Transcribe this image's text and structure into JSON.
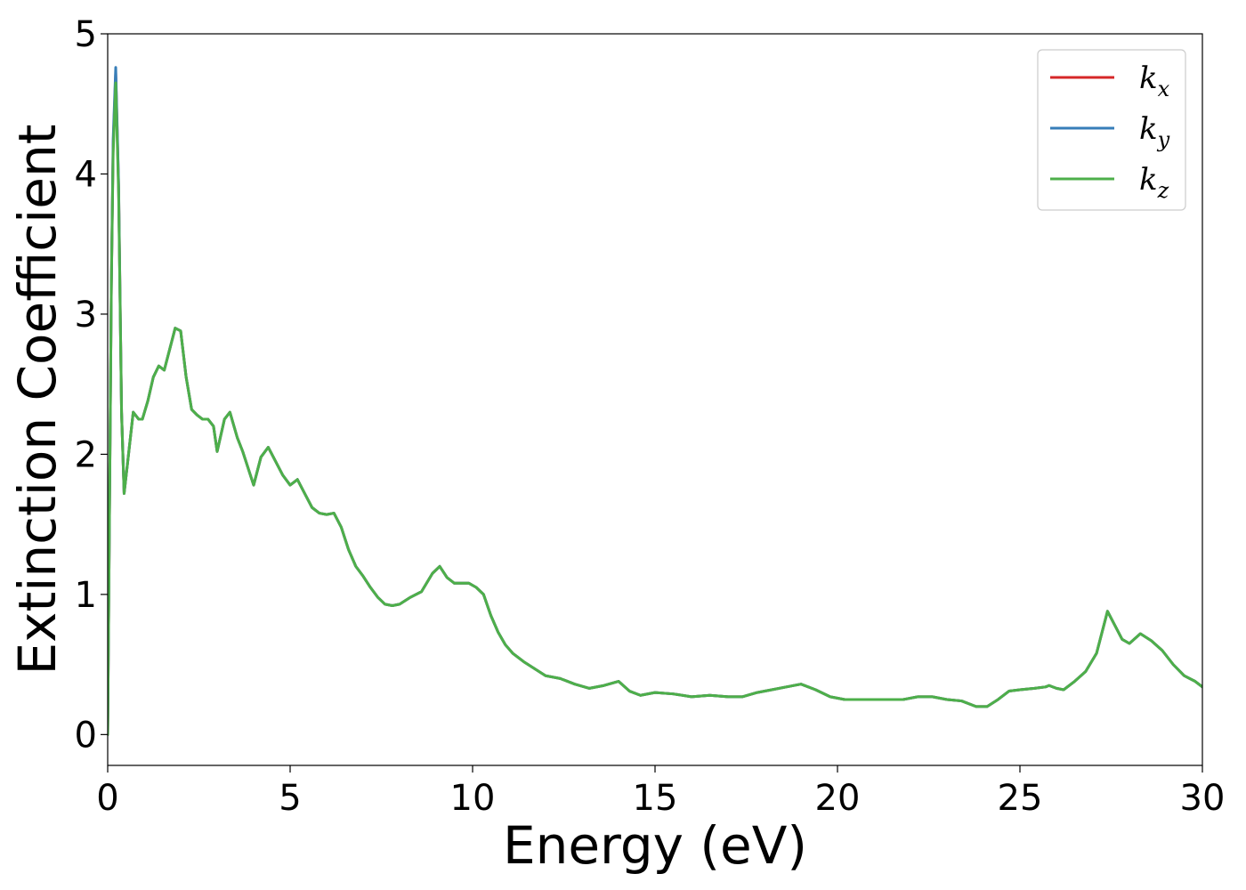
{
  "chart_data": {
    "type": "line",
    "xlabel": "Energy (eV)",
    "ylabel": "Extinction Coefficient",
    "xlim": [
      0,
      30
    ],
    "ylim": [
      -0.22,
      5
    ],
    "xticks": [
      0,
      5,
      10,
      15,
      20,
      25,
      30
    ],
    "xtick_labels": [
      "0",
      "5",
      "10",
      "15",
      "20",
      "25",
      "30"
    ],
    "yticks": [
      0,
      1,
      2,
      3,
      4,
      5
    ],
    "ytick_labels": [
      "0",
      "1",
      "2",
      "3",
      "4",
      "5"
    ],
    "grid": false,
    "legend_position": "top-right",
    "x": [
      0,
      0.05,
      0.1,
      0.15,
      0.22,
      0.3,
      0.38,
      0.45,
      0.55,
      0.7,
      0.85,
      0.95,
      1.1,
      1.25,
      1.4,
      1.55,
      1.7,
      1.85,
      2.0,
      2.15,
      2.3,
      2.45,
      2.6,
      2.75,
      2.9,
      3.0,
      3.2,
      3.35,
      3.55,
      3.7,
      3.85,
      4.0,
      4.2,
      4.4,
      4.6,
      4.8,
      5.0,
      5.2,
      5.4,
      5.6,
      5.8,
      6.0,
      6.2,
      6.4,
      6.6,
      6.8,
      7.0,
      7.2,
      7.4,
      7.6,
      7.8,
      8.0,
      8.3,
      8.6,
      8.9,
      9.1,
      9.3,
      9.5,
      9.7,
      9.9,
      10.1,
      10.3,
      10.5,
      10.7,
      10.9,
      11.1,
      11.4,
      11.7,
      12.0,
      12.4,
      12.8,
      13.2,
      13.6,
      14.0,
      14.3,
      14.6,
      15.0,
      15.5,
      16.0,
      16.5,
      17.0,
      17.4,
      17.8,
      18.2,
      18.6,
      19.0,
      19.4,
      19.8,
      20.2,
      20.6,
      21.0,
      21.4,
      21.8,
      22.2,
      22.6,
      23.0,
      23.4,
      23.8,
      24.1,
      24.4,
      24.7,
      25.0,
      25.4,
      25.7,
      25.8,
      26.0,
      26.2,
      26.5,
      26.8,
      27.1,
      27.3,
      27.4,
      27.6,
      27.8,
      28.0,
      28.3,
      28.6,
      28.9,
      29.2,
      29.5,
      29.8,
      30.0
    ],
    "series": [
      {
        "name": "k",
        "subscript": "x",
        "color": "#d62728",
        "values": [
          0,
          1.6,
          3.2,
          4.2,
          4.72,
          3.9,
          2.3,
          1.72,
          1.95,
          2.3,
          2.25,
          2.25,
          2.38,
          2.55,
          2.63,
          2.6,
          2.75,
          2.9,
          2.88,
          2.55,
          2.32,
          2.28,
          2.25,
          2.25,
          2.2,
          2.02,
          2.25,
          2.3,
          2.12,
          2.02,
          1.9,
          1.78,
          1.98,
          2.05,
          1.95,
          1.85,
          1.78,
          1.82,
          1.72,
          1.62,
          1.58,
          1.57,
          1.58,
          1.48,
          1.32,
          1.2,
          1.13,
          1.05,
          0.98,
          0.93,
          0.92,
          0.93,
          0.98,
          1.02,
          1.15,
          1.2,
          1.12,
          1.08,
          1.08,
          1.08,
          1.05,
          1.0,
          0.85,
          0.73,
          0.64,
          0.58,
          0.52,
          0.47,
          0.42,
          0.4,
          0.36,
          0.33,
          0.35,
          0.38,
          0.31,
          0.28,
          0.3,
          0.29,
          0.27,
          0.28,
          0.27,
          0.27,
          0.3,
          0.32,
          0.34,
          0.36,
          0.32,
          0.27,
          0.25,
          0.25,
          0.25,
          0.25,
          0.25,
          0.27,
          0.27,
          0.25,
          0.24,
          0.2,
          0.2,
          0.25,
          0.31,
          0.32,
          0.33,
          0.34,
          0.35,
          0.33,
          0.32,
          0.38,
          0.45,
          0.58,
          0.78,
          0.88,
          0.78,
          0.68,
          0.65,
          0.72,
          0.67,
          0.6,
          0.5,
          0.42,
          0.38,
          0.34
        ]
      },
      {
        "name": "k",
        "subscript": "y",
        "color": "#377eb8",
        "values": [
          0,
          1.6,
          3.2,
          4.25,
          4.76,
          3.92,
          2.3,
          1.72,
          1.95,
          2.3,
          2.25,
          2.25,
          2.38,
          2.55,
          2.63,
          2.6,
          2.75,
          2.9,
          2.88,
          2.55,
          2.32,
          2.28,
          2.25,
          2.25,
          2.2,
          2.02,
          2.25,
          2.3,
          2.12,
          2.02,
          1.9,
          1.78,
          1.98,
          2.05,
          1.95,
          1.85,
          1.78,
          1.82,
          1.72,
          1.62,
          1.58,
          1.57,
          1.58,
          1.48,
          1.32,
          1.2,
          1.13,
          1.05,
          0.98,
          0.93,
          0.92,
          0.93,
          0.98,
          1.02,
          1.15,
          1.2,
          1.12,
          1.08,
          1.08,
          1.08,
          1.05,
          1.0,
          0.85,
          0.73,
          0.64,
          0.58,
          0.52,
          0.47,
          0.42,
          0.4,
          0.36,
          0.33,
          0.35,
          0.38,
          0.31,
          0.28,
          0.3,
          0.29,
          0.27,
          0.28,
          0.27,
          0.27,
          0.3,
          0.32,
          0.34,
          0.36,
          0.32,
          0.27,
          0.25,
          0.25,
          0.25,
          0.25,
          0.25,
          0.27,
          0.27,
          0.25,
          0.24,
          0.2,
          0.2,
          0.25,
          0.31,
          0.32,
          0.33,
          0.34,
          0.35,
          0.33,
          0.32,
          0.38,
          0.45,
          0.58,
          0.78,
          0.88,
          0.78,
          0.68,
          0.65,
          0.72,
          0.67,
          0.6,
          0.5,
          0.42,
          0.38,
          0.34
        ]
      },
      {
        "name": "k",
        "subscript": "z",
        "color": "#4daf4a",
        "values": [
          0,
          1.6,
          3.2,
          4.15,
          4.65,
          3.85,
          2.3,
          1.72,
          1.95,
          2.3,
          2.25,
          2.25,
          2.38,
          2.55,
          2.63,
          2.6,
          2.75,
          2.9,
          2.88,
          2.55,
          2.32,
          2.28,
          2.25,
          2.25,
          2.2,
          2.02,
          2.25,
          2.3,
          2.12,
          2.02,
          1.9,
          1.78,
          1.98,
          2.05,
          1.95,
          1.85,
          1.78,
          1.82,
          1.72,
          1.62,
          1.58,
          1.57,
          1.58,
          1.48,
          1.32,
          1.2,
          1.13,
          1.05,
          0.98,
          0.93,
          0.92,
          0.93,
          0.98,
          1.02,
          1.15,
          1.2,
          1.12,
          1.08,
          1.08,
          1.08,
          1.05,
          1.0,
          0.85,
          0.73,
          0.64,
          0.58,
          0.52,
          0.47,
          0.42,
          0.4,
          0.36,
          0.33,
          0.35,
          0.38,
          0.31,
          0.28,
          0.3,
          0.29,
          0.27,
          0.28,
          0.27,
          0.27,
          0.3,
          0.32,
          0.34,
          0.36,
          0.32,
          0.27,
          0.25,
          0.25,
          0.25,
          0.25,
          0.25,
          0.27,
          0.27,
          0.25,
          0.24,
          0.2,
          0.2,
          0.25,
          0.31,
          0.32,
          0.33,
          0.34,
          0.35,
          0.33,
          0.32,
          0.38,
          0.45,
          0.58,
          0.78,
          0.88,
          0.78,
          0.68,
          0.65,
          0.72,
          0.67,
          0.6,
          0.5,
          0.42,
          0.38,
          0.34
        ]
      }
    ]
  }
}
